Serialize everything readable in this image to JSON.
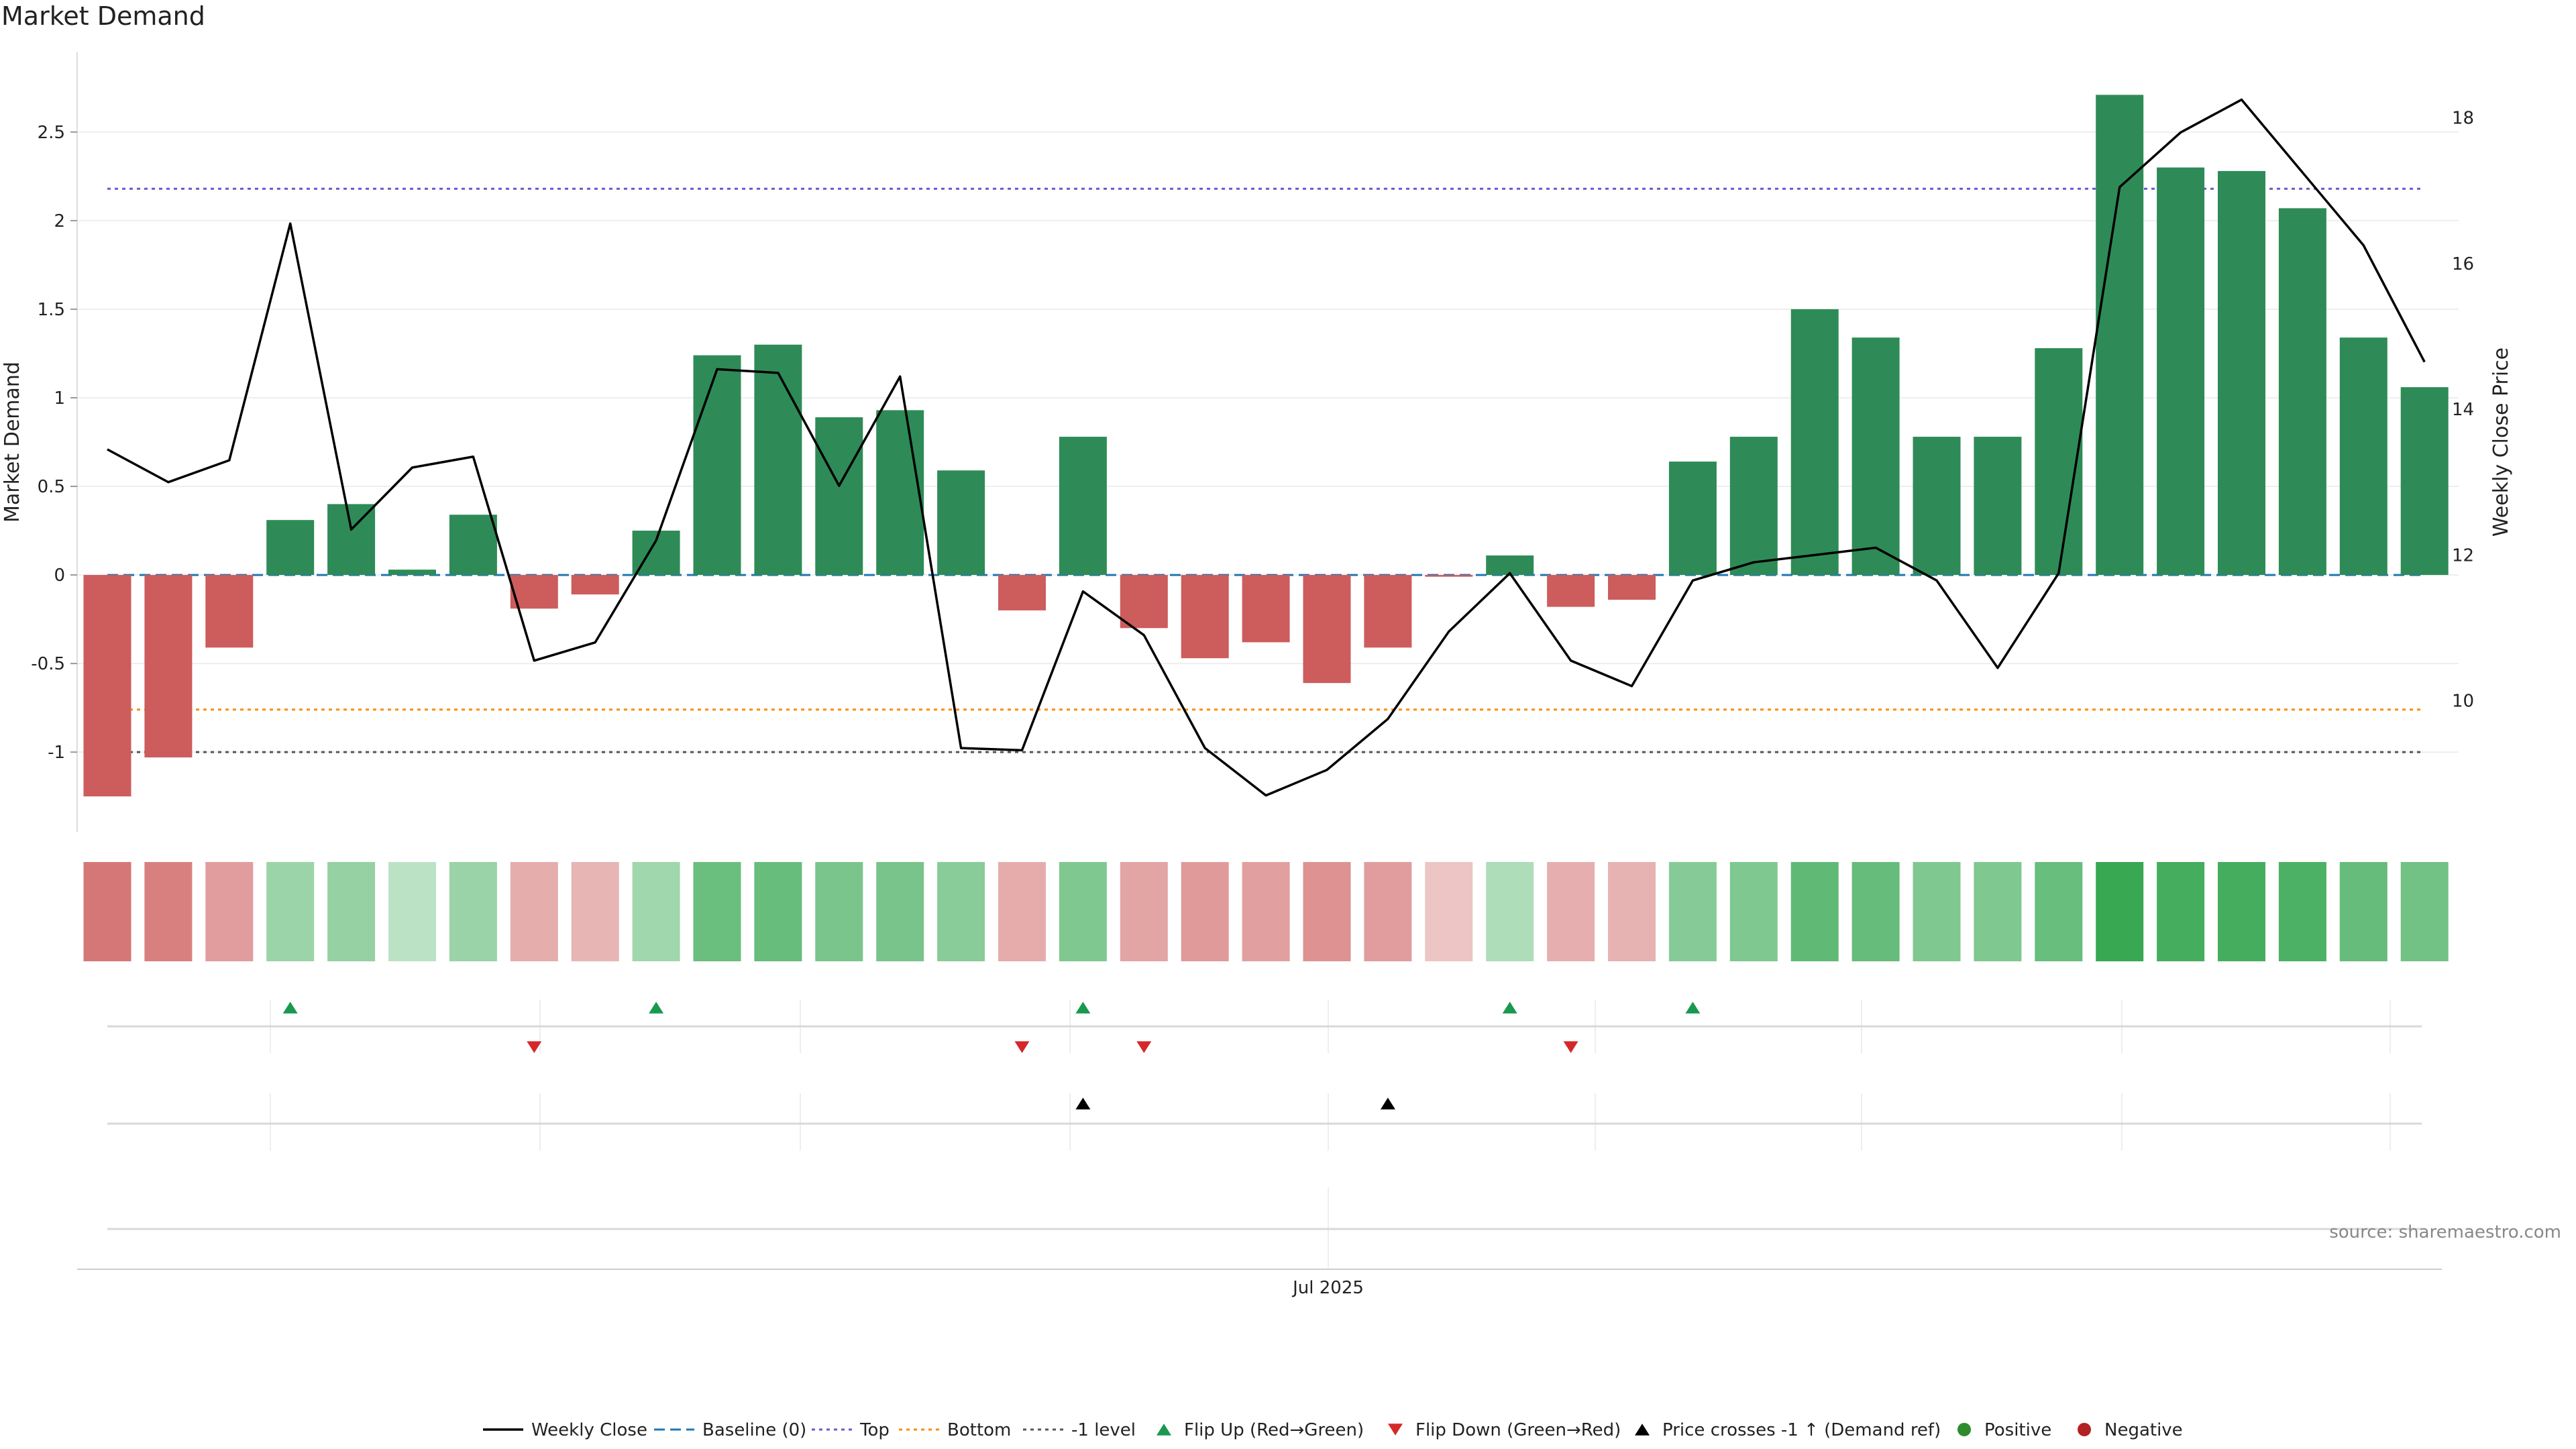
{
  "title": "Market Demand",
  "source": "source: sharemaestro.com",
  "colors": {
    "positive": "#2e8b57",
    "negative": "#cd5c5c",
    "price_line": "#000000",
    "baseline": "#1f77b4",
    "top": "#6a5acd",
    "bottom": "#ff8c00",
    "minus_one": "#555555",
    "flip_up": "#1a9850",
    "flip_down": "#d62728",
    "cross": "#000000"
  },
  "chart_data": {
    "type": "bar",
    "x_tick_labels": [
      "Jul 2025"
    ],
    "y_left": {
      "label": "Market Demand",
      "ticks": [
        "-1",
        "-0.5",
        "0",
        "0.5",
        "1",
        "1.5",
        "2",
        "2.5"
      ],
      "range": [
        -1.45,
        2.95
      ]
    },
    "y_right": {
      "label": "Weekly Close Price",
      "ticks": [
        "10",
        "12",
        "14",
        "16",
        "18"
      ],
      "range": [
        8.2,
        18.9
      ]
    },
    "demand": [
      -1.25,
      -1.03,
      -0.41,
      0.31,
      0.4,
      0.03,
      0.34,
      -0.19,
      -0.11,
      0.25,
      1.24,
      1.3,
      0.89,
      0.93,
      0.59,
      -0.2,
      0.78,
      -0.3,
      -0.47,
      -0.38,
      -0.61,
      -0.41,
      -0.01,
      0.11,
      -0.18,
      -0.14,
      0.64,
      0.78,
      1.5,
      1.34,
      0.78,
      0.78,
      1.28,
      2.71,
      2.3,
      2.28,
      2.07,
      1.34,
      1.06
    ],
    "weekly_close": [
      13.45,
      13.0,
      13.3,
      16.55,
      12.35,
      13.2,
      13.35,
      10.55,
      10.8,
      12.2,
      14.55,
      14.5,
      12.95,
      14.45,
      9.35,
      9.32,
      11.5,
      10.9,
      9.35,
      8.7,
      9.05,
      9.75,
      10.95,
      11.75,
      10.55,
      10.2,
      11.65,
      11.9,
      12.0,
      12.1,
      11.65,
      10.45,
      11.75,
      17.05,
      17.8,
      18.25,
      17.25,
      16.25,
      14.65
    ],
    "reference_lines": {
      "baseline": 0,
      "top": 2.18,
      "bottom": -0.76,
      "minus_one": -1.0
    },
    "flip_up_indices": [
      3,
      9,
      16,
      23,
      26
    ],
    "flip_down_indices": [
      7,
      15,
      17,
      24
    ],
    "price_cross_indices": [
      16,
      21
    ],
    "legend": [
      {
        "label": "Weekly Close",
        "kind": "line"
      },
      {
        "label": "Baseline (0)",
        "kind": "dash"
      },
      {
        "label": "Top",
        "kind": "dot-top"
      },
      {
        "label": "Bottom",
        "kind": "dot-bottom"
      },
      {
        "label": "-1 level",
        "kind": "dot-minus"
      },
      {
        "label": "Flip Up (Red→Green)",
        "kind": "tri-up-green"
      },
      {
        "label": "Flip Down (Green→Red)",
        "kind": "tri-down-red"
      },
      {
        "label": "Price crosses -1 ↑ (Demand ref)",
        "kind": "tri-up-black"
      },
      {
        "label": "Positive",
        "kind": "dot-green"
      },
      {
        "label": "Negative",
        "kind": "dot-red"
      }
    ]
  }
}
